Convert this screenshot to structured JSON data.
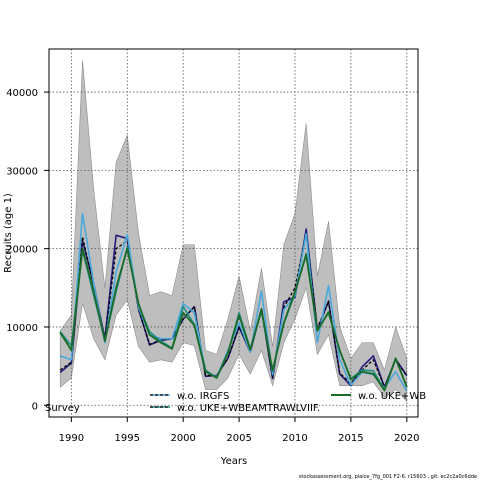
{
  "chart_data": {
    "type": "line",
    "xlabel": "Years",
    "ylabel": "Recruits (age 1)",
    "xlim": [
      1988,
      2021
    ],
    "ylim": [
      -1500,
      45500
    ],
    "xticks": [
      1990,
      1995,
      2000,
      2005,
      2010,
      2015,
      2020
    ],
    "yticks": [
      0,
      10000,
      20000,
      30000,
      40000
    ],
    "grid": true,
    "x": [
      1989,
      1990,
      1991,
      1992,
      1993,
      1994,
      1995,
      1996,
      1997,
      1998,
      1999,
      2000,
      2001,
      2002,
      2003,
      2004,
      2005,
      2006,
      2007,
      2008,
      2009,
      2010,
      2011,
      2012,
      2013,
      2014,
      2015,
      2016,
      2017,
      2018,
      2019,
      2020
    ],
    "band": {
      "color": "#bebebe",
      "lower": [
        2300,
        3500,
        13000,
        8500,
        5800,
        11500,
        13500,
        7500,
        5500,
        5800,
        5500,
        8000,
        7600,
        2000,
        2000,
        3500,
        6500,
        4000,
        7000,
        2500,
        8000,
        11000,
        15000,
        6500,
        9000,
        2500,
        2500,
        2500,
        3000,
        1000,
        2000,
        500
      ],
      "upper": [
        9500,
        11500,
        44000,
        27500,
        15000,
        31000,
        34500,
        22000,
        14000,
        14500,
        14000,
        20500,
        20500,
        7000,
        6500,
        11000,
        16500,
        9500,
        17500,
        7500,
        20500,
        24500,
        36000,
        16500,
        23500,
        10000,
        6000,
        8000,
        8000,
        4500,
        10000,
        6000
      ]
    },
    "series": [
      {
        "name": "",
        "color": "#221b7d",
        "dash": "",
        "width": 1.6,
        "values": [
          4200,
          5400,
          21000,
          15500,
          8500,
          21700,
          21300,
          12300,
          7700,
          8300,
          8500,
          11000,
          12600,
          3700,
          3800,
          6000,
          10000,
          6800,
          12300,
          3400,
          13200,
          13800,
          22500,
          9600,
          13300,
          4000,
          2500,
          4900,
          6300,
          2300,
          5900,
          3800
        ]
      },
      {
        "name": "",
        "color": "#000000",
        "dash": "3,2",
        "width": 1.3,
        "values": [
          4500,
          5500,
          21500,
          15200,
          8400,
          20000,
          21000,
          12200,
          7800,
          8300,
          8500,
          11000,
          12600,
          3800,
          3800,
          6000,
          10000,
          6900,
          12400,
          3500,
          12500,
          15000,
          22000,
          9800,
          13300,
          4100,
          2800,
          4500,
          5800,
          2300,
          5800,
          3700
        ]
      },
      {
        "name": "w.o. IRGFS",
        "color": "#4aa9dc",
        "dash": "",
        "width": 1.6,
        "values": [
          6300,
          5800,
          24500,
          15500,
          8000,
          17000,
          21800,
          12500,
          9000,
          8500,
          8500,
          13000,
          11800,
          4400,
          3600,
          7000,
          10500,
          6800,
          14600,
          3900,
          12200,
          14000,
          21900,
          8000,
          15300,
          5800,
          2600,
          4200,
          3900,
          2200,
          4300,
          1800
        ]
      },
      {
        "name": "w.o. UKE+WBEAMTRAWLVIIF.",
        "color": "#1e8f84",
        "dash": "",
        "width": 1.6,
        "values": [
          9400,
          7600,
          19800,
          14000,
          8300,
          14500,
          20200,
          12800,
          9400,
          8200,
          7300,
          12600,
          10300,
          4500,
          3500,
          6700,
          11800,
          7200,
          12000,
          4500,
          10400,
          14300,
          19400,
          9600,
          11800,
          7000,
          3400,
          4500,
          4400,
          2000,
          5900,
          2400
        ]
      },
      {
        "name": "w.o. UKE+WBEAMTRAWLVIIF.",
        "color": "#1a6b28",
        "dash": "",
        "width": 1.8,
        "values": [
          9300,
          7000,
          20000,
          14500,
          8200,
          15000,
          20000,
          13000,
          9000,
          8000,
          7200,
          11800,
          10200,
          4300,
          3500,
          6700,
          11500,
          7100,
          12200,
          4400,
          10500,
          14500,
          19200,
          9500,
          11900,
          7000,
          3300,
          4300,
          4000,
          1900,
          6000,
          2300
        ]
      }
    ],
    "legend": [
      {
        "label": "Survey",
        "color": "",
        "dash": ""
      },
      {
        "label": "w.o. IRGFS",
        "color": "#4aa9dc",
        "dash": "3,2"
      },
      {
        "label": "w.o. UKE+WBEAMTRAWLVIIF.",
        "color": "#1e8f84",
        "dash": "3,2"
      },
      {
        "label": "w.o. UKE+WBEAMTRAWLVIIF.",
        "color": "#1a6b28",
        "dash": ""
      }
    ],
    "legend_truncated": "w.o. UKE+WB"
  },
  "footer": "stockassessment.org, plaice_7fg_001 F2-6, r15603 , git: ec2c2a0c6dde"
}
